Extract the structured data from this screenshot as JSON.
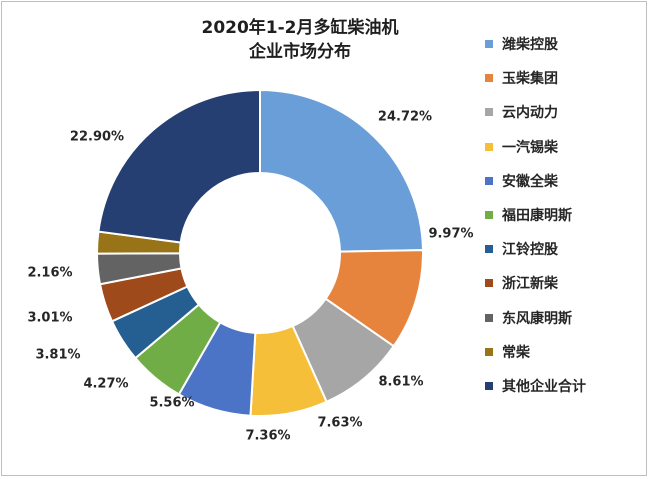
{
  "chart_data": {
    "type": "pie",
    "title_line1": "2020年1-2月多缸柴油机",
    "title_line2": "企业市场分布",
    "legend_position": "right",
    "labels": [
      "潍柴控股",
      "玉柴集团",
      "云内动力",
      "一汽锡柴",
      "安徽全柴",
      "福田康明斯",
      "江铃控股",
      "浙江新柴",
      "东风康明斯",
      "常柴",
      "其他企业合计"
    ],
    "values": [
      24.72,
      9.97,
      8.61,
      7.63,
      7.36,
      5.56,
      4.27,
      3.81,
      3.01,
      2.16,
      22.9
    ],
    "value_labels": [
      "24.72%",
      "9.97%",
      "8.61%",
      "7.63%",
      "7.36%",
      "5.56%",
      "4.27%",
      "3.81%",
      "3.01%",
      "2.16%",
      "22.90%"
    ],
    "colors": [
      "#6a9ed8",
      "#e6843e",
      "#a6a6a6",
      "#f6bf3a",
      "#4b74c6",
      "#71ad47",
      "#255e91",
      "#9e4a1b",
      "#636363",
      "#997318",
      "#253f72"
    ]
  }
}
